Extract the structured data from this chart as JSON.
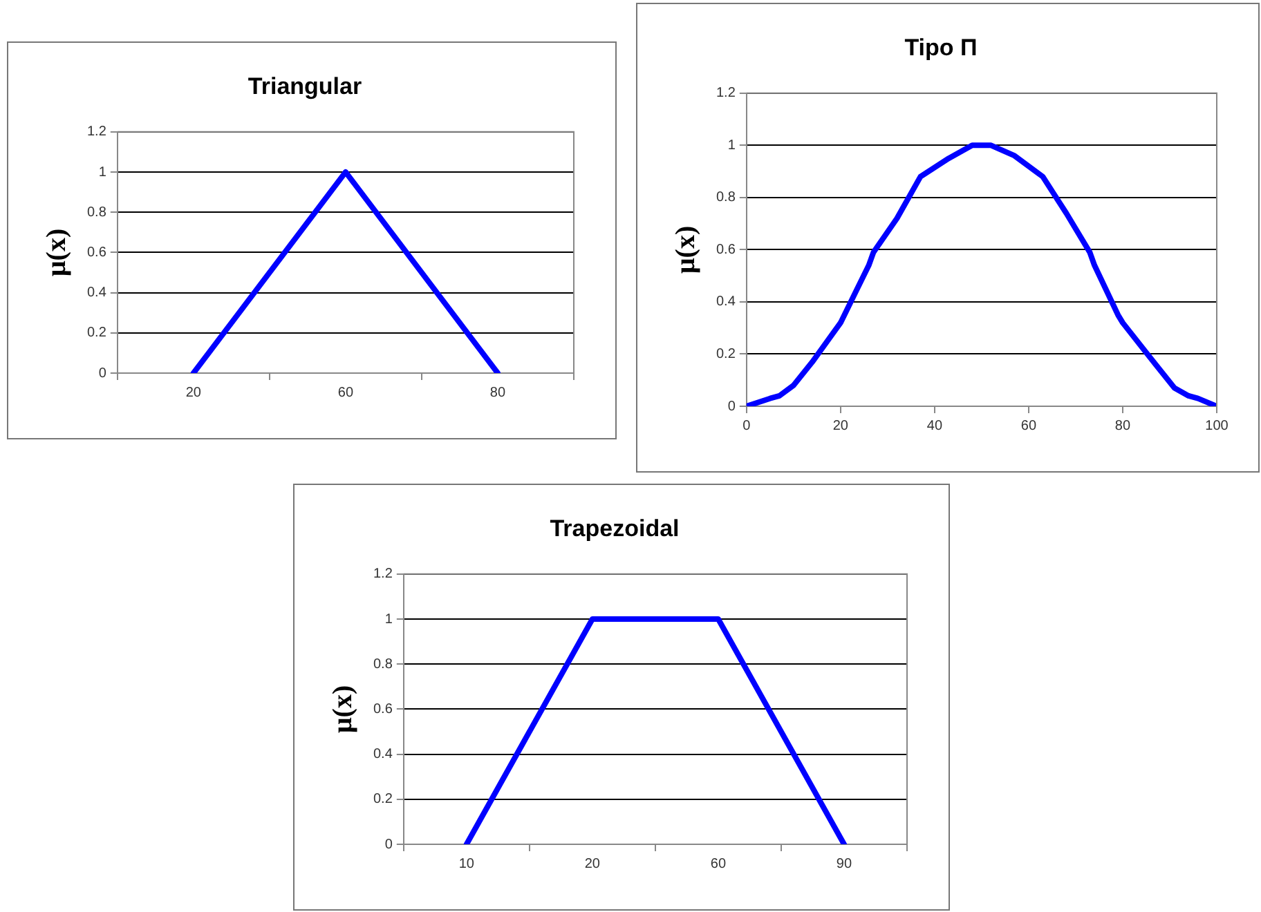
{
  "chart_data": [
    {
      "type": "line",
      "title": "Triangular",
      "ylabel": "μ(x)",
      "categories": [
        "20",
        "60",
        "80"
      ],
      "series": [
        {
          "color": "#0000ff",
          "values": [
            0,
            1,
            0
          ]
        }
      ],
      "ylim": [
        0,
        1.2
      ],
      "yticks": [
        0,
        0.2,
        0.4,
        0.6,
        0.8,
        1,
        1.2
      ],
      "grid": "y",
      "marker": "none"
    },
    {
      "type": "line",
      "title": "Tipo Π",
      "ylabel": "μ(x)",
      "series": [
        {
          "color": "#0000ff",
          "x": [
            0,
            5,
            7,
            10,
            14,
            20,
            23,
            26,
            27,
            32,
            37,
            43,
            48,
            52,
            57,
            63,
            68,
            73,
            74,
            79,
            80,
            87,
            91,
            94,
            96,
            100
          ],
          "values": [
            0,
            0.03,
            0.04,
            0.08,
            0.17,
            0.32,
            0.43,
            0.54,
            0.59,
            0.72,
            0.88,
            0.95,
            1,
            1,
            0.96,
            0.88,
            0.74,
            0.59,
            0.54,
            0.35,
            0.32,
            0.16,
            0.07,
            0.04,
            0.03,
            0
          ]
        }
      ],
      "xlim": [
        0,
        100
      ],
      "xticks": [
        0,
        20,
        40,
        60,
        80,
        100
      ],
      "ylim": [
        0,
        1.2
      ],
      "yticks": [
        0,
        0.2,
        0.4,
        0.6,
        0.8,
        1,
        1.2
      ],
      "grid": "y",
      "marker": "none"
    },
    {
      "type": "line",
      "title": "Trapezoidal",
      "ylabel": "μ(x)",
      "categories": [
        "10",
        "20",
        "60",
        "90"
      ],
      "series": [
        {
          "color": "#0000ff",
          "values": [
            0,
            1,
            1,
            0
          ]
        }
      ],
      "ylim": [
        0,
        1.2
      ],
      "yticks": [
        0,
        0.2,
        0.4,
        0.6,
        0.8,
        1,
        1.2
      ],
      "grid": "y",
      "marker": "none"
    }
  ]
}
